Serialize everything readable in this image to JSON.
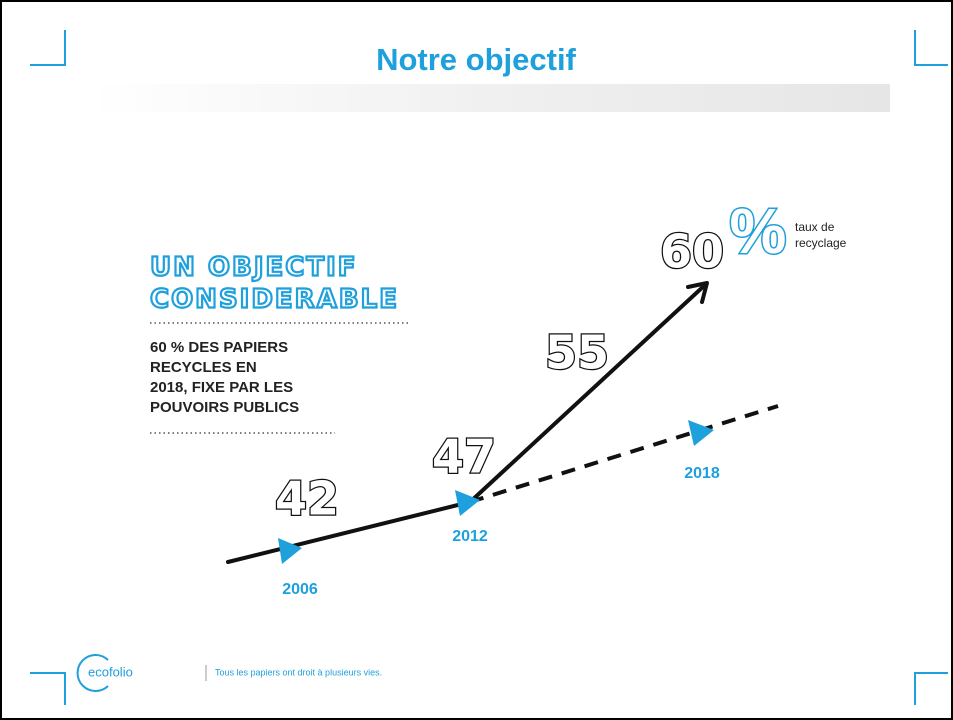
{
  "title": "Notre objectif",
  "headline": [
    "UN OBJECTIF",
    "CONSIDERABLE"
  ],
  "description": [
    "60 % DES PAPIERS",
    "RECYCLES EN",
    "2018, FIXE PAR LES",
    "POUVOIRS PUBLICS"
  ],
  "unit": {
    "symbol": "%",
    "label": [
      "taux de",
      "recyclage"
    ]
  },
  "figures": [
    42,
    47,
    55,
    60
  ],
  "years": [
    "2006",
    "2012",
    "2018"
  ],
  "footer": {
    "brand": "ecofolio",
    "tagline": "Tous les papiers ont droit à plusieurs vies."
  }
}
